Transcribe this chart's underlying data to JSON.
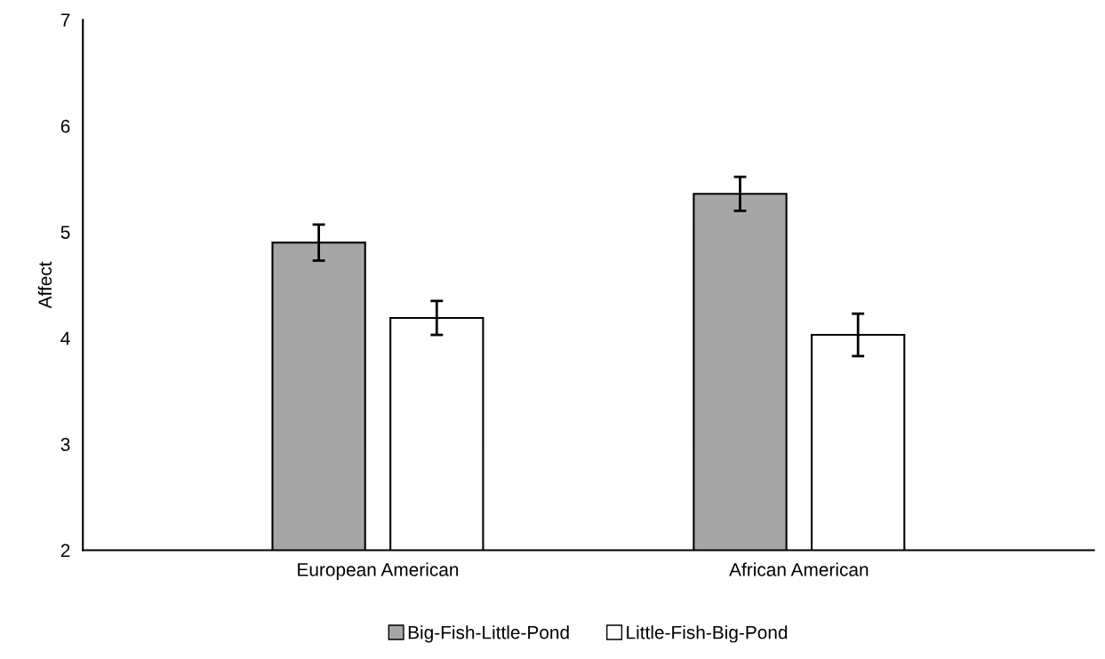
{
  "chart_data": {
    "type": "bar",
    "ylabel": "Affect",
    "categories": [
      "European American",
      "African American"
    ],
    "series": [
      {
        "name": "Big-Fish-Little-Pond",
        "color": "#a6a6a6",
        "values": [
          4.9,
          5.36
        ],
        "errors": [
          0.17,
          0.16
        ]
      },
      {
        "name": "Little-Fish-Big-Pond",
        "color": "#ffffff",
        "values": [
          4.19,
          4.03
        ],
        "errors": [
          0.16,
          0.2
        ]
      }
    ],
    "ylim": [
      2,
      7
    ],
    "yticks": [
      2,
      3,
      4,
      5,
      6,
      7
    ],
    "grid": false,
    "legend": "bottom"
  }
}
